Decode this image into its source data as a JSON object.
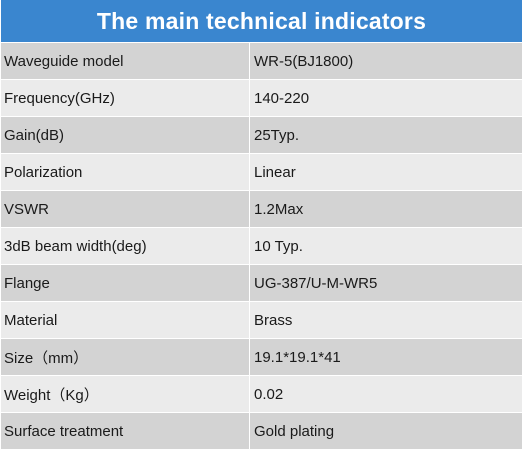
{
  "title": "The main technical indicators",
  "rows": [
    {
      "label": "Waveguide model",
      "value": "WR-5(BJ1800)"
    },
    {
      "label": "Frequency(GHz)",
      "value": "140-220"
    },
    {
      "label": "Gain(dB)",
      "value": "25Typ."
    },
    {
      "label": "Polarization",
      "value": "Linear"
    },
    {
      "label": "VSWR",
      "value": "1.2Max"
    },
    {
      "label": "3dB beam width(deg)",
      "value": "10 Typ."
    },
    {
      "label": "Flange",
      "value": "UG-387/U-M-WR5"
    },
    {
      "label": "Material",
      "value": "Brass"
    },
    {
      "label": "Size（mm）",
      "value": "19.1*19.1*41"
    },
    {
      "label": "Weight（Kg）",
      "value": "0.02"
    },
    {
      "label": "Surface treatment",
      "value": "Gold plating"
    }
  ],
  "colors": {
    "header_bg": "#3a86cf",
    "row_odd": "#d3d3d3",
    "row_even": "#ebebeb"
  }
}
